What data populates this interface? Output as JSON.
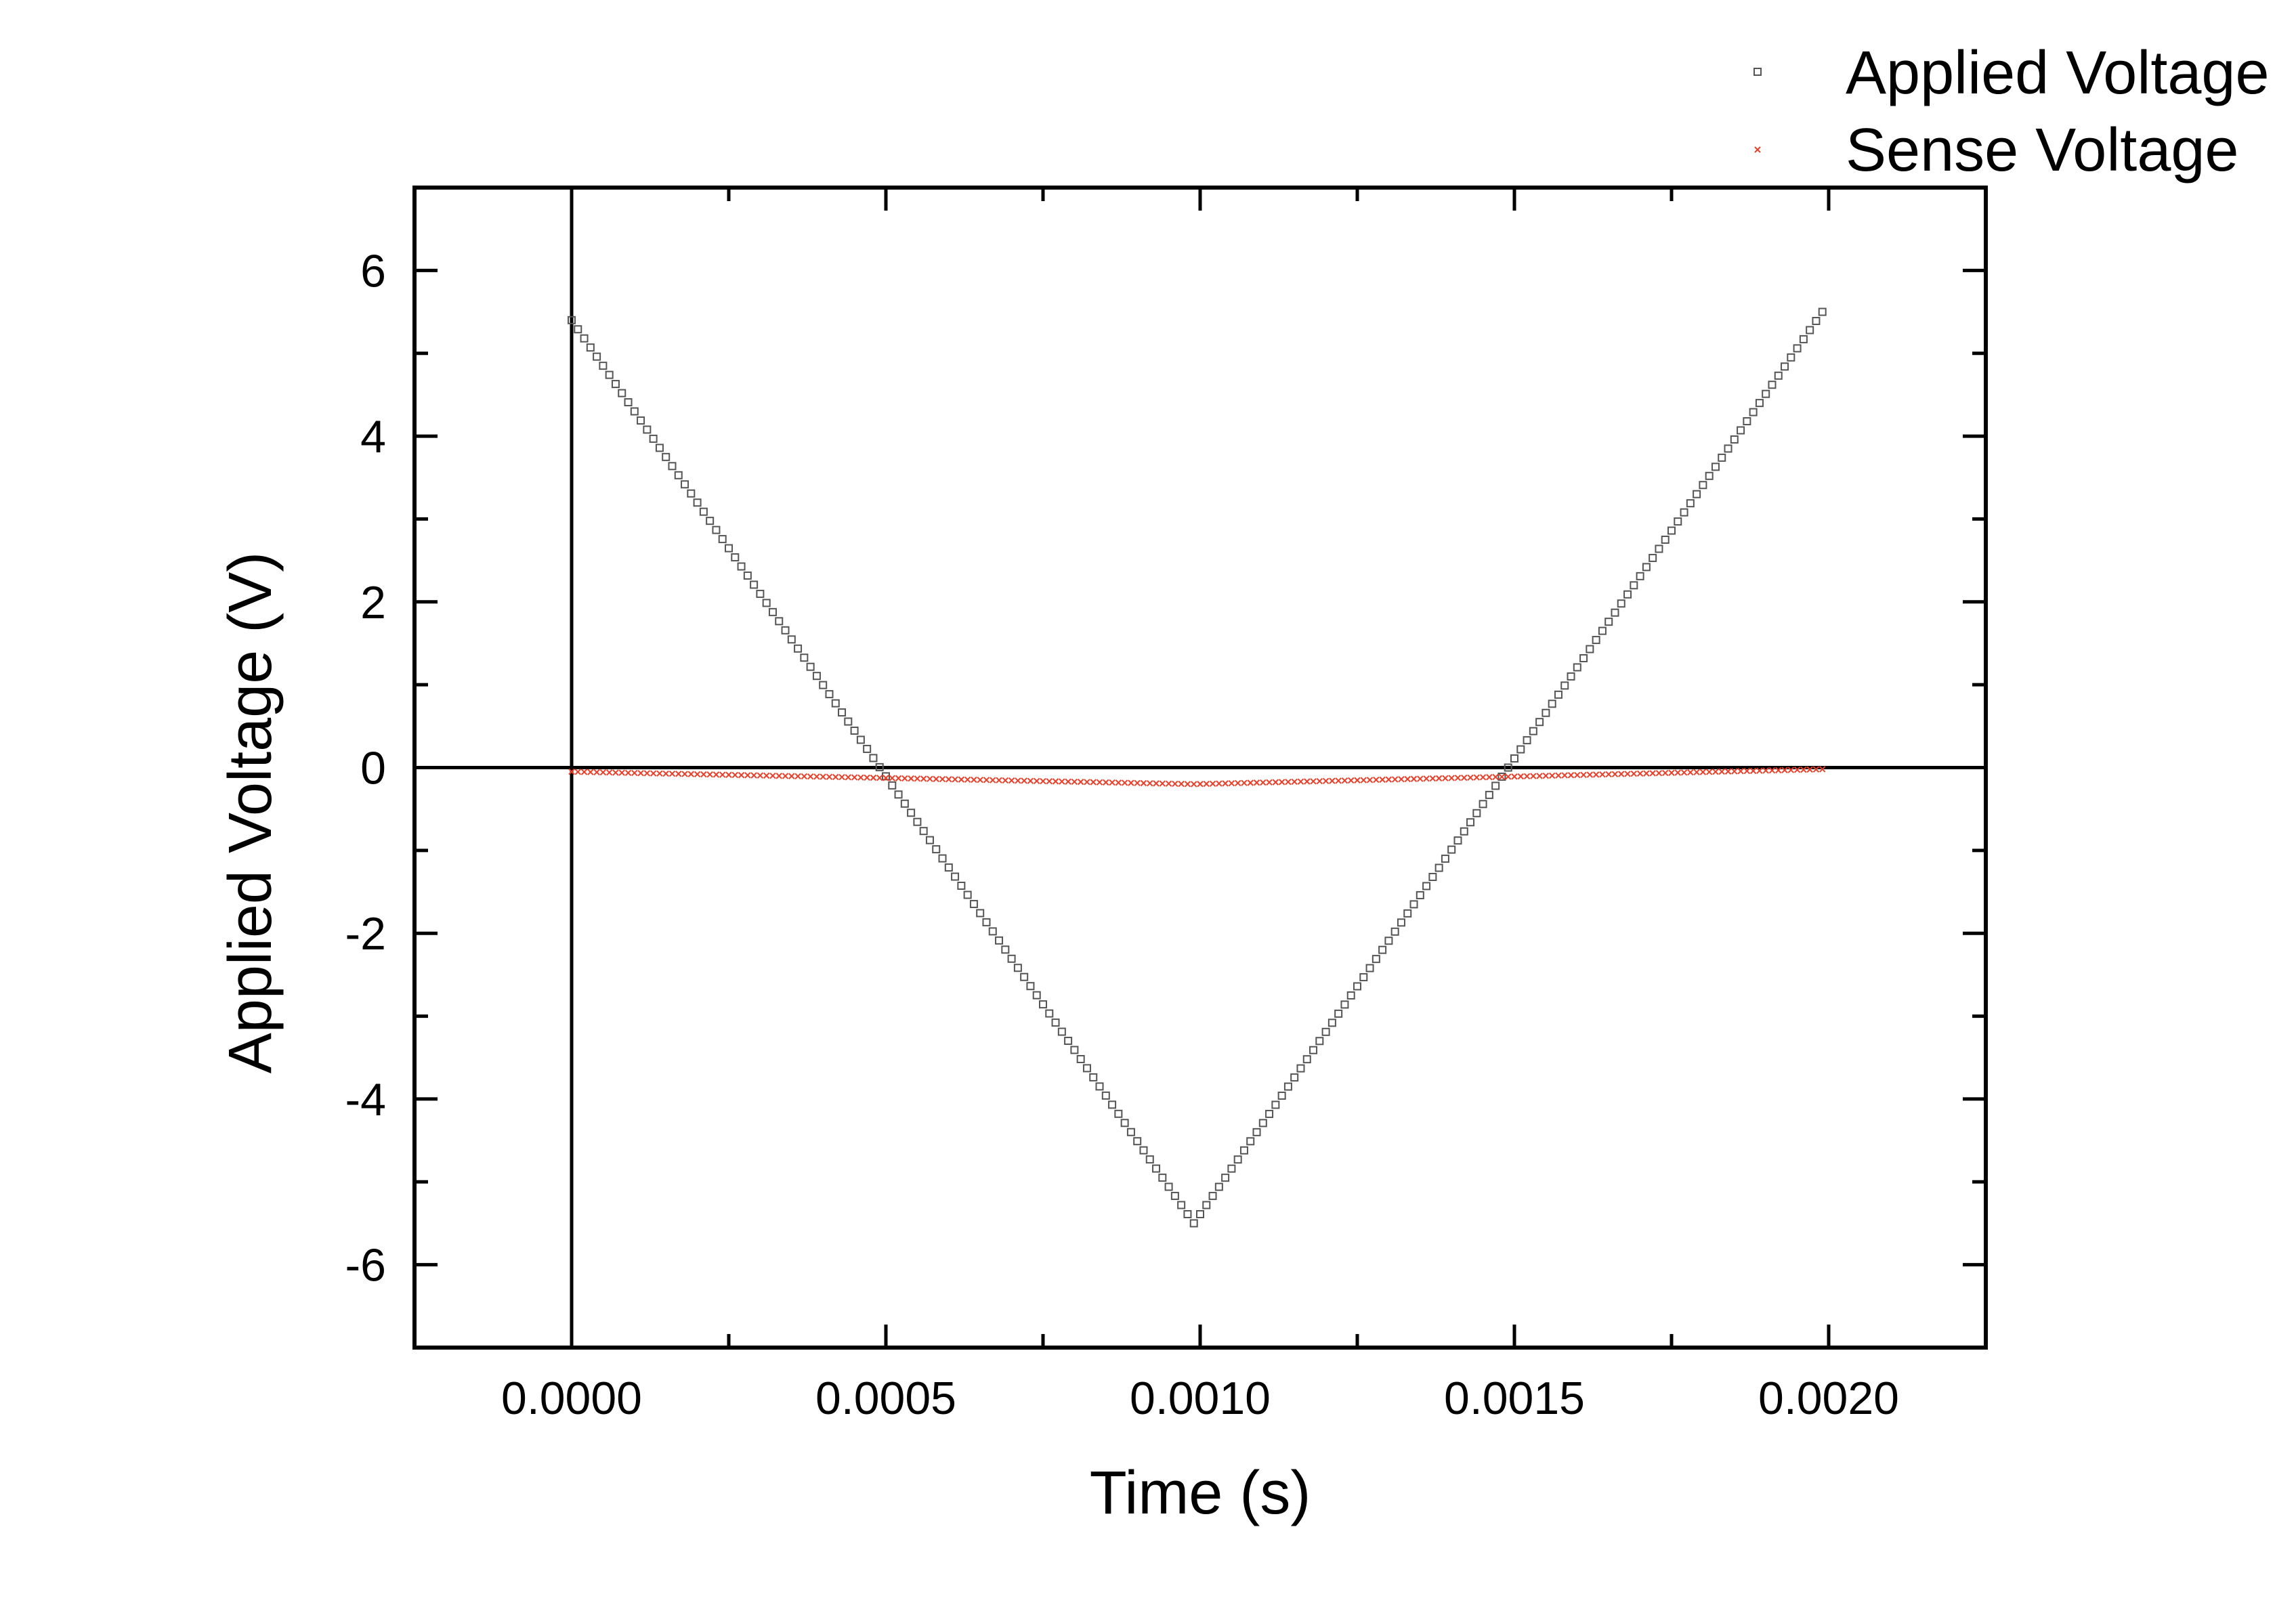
{
  "chart_data": {
    "type": "scatter",
    "xlabel": "Time (s)",
    "ylabel": "Applied Voltage (V)",
    "xlim": [
      -0.00025,
      0.00225
    ],
    "ylim": [
      -7,
      7
    ],
    "x_ticks": [
      0.0,
      0.0005,
      0.001,
      0.0015,
      0.002
    ],
    "x_tick_labels": [
      "0.0000",
      "0.0005",
      "0.0010",
      "0.0015",
      "0.0020"
    ],
    "x_minor_step": 0.00025,
    "y_ticks": [
      -6,
      -4,
      -2,
      0,
      2,
      4,
      6
    ],
    "y_tick_labels": [
      "-6",
      "-4",
      "-2",
      "0",
      "2",
      "4",
      "6"
    ],
    "y_minor_step": 1,
    "zero_lines": true,
    "grid": false,
    "legend_position": "top-right, outside plot",
    "sample_step": 1e-05,
    "series": [
      {
        "name": "Applied Voltage",
        "marker": "square",
        "color": "#555555",
        "x_start": 0.0,
        "x_end": 0.00199,
        "segments": [
          {
            "x": [
              0.0,
              0.00099
            ],
            "y": [
              5.4,
              -5.5
            ]
          },
          {
            "x": [
              0.00099,
              0.00199
            ],
            "y": [
              -5.5,
              5.5
            ]
          }
        ]
      },
      {
        "name": "Sense Voltage",
        "marker": "x",
        "color": "#e8402a",
        "x_start": 0.0,
        "x_end": 0.00199,
        "segments": [
          {
            "x": [
              0.0,
              0.00099
            ],
            "y": [
              -0.05,
              -0.2
            ]
          },
          {
            "x": [
              0.00099,
              0.00199
            ],
            "y": [
              -0.2,
              -0.02
            ]
          }
        ]
      }
    ]
  }
}
